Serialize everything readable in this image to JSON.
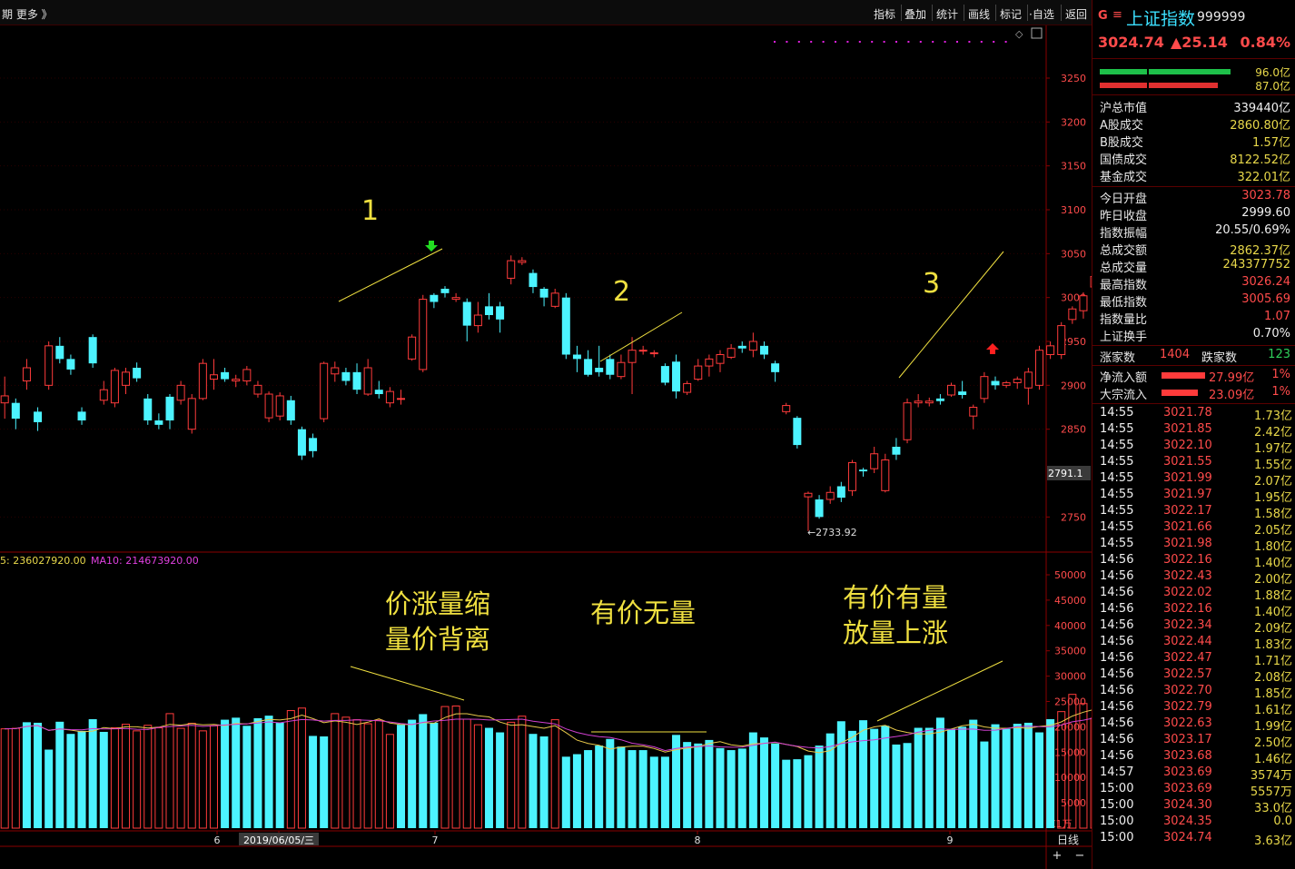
{
  "toolbar": {
    "left_text": "期  更多 》",
    "items": [
      "指标",
      "叠加",
      "统计",
      "画线",
      "标记",
      "·自选",
      "返回"
    ]
  },
  "header": {
    "g_icon": "G",
    "menu_icon": "≡",
    "name": "上证指数",
    "code": "999999",
    "price": "3024.74",
    "change": "▲25.14",
    "pct": "0.84%"
  },
  "flow_bars": {
    "green_value": "96.0亿",
    "red_value": "87.0亿"
  },
  "stats": [
    {
      "k": "沪总市值",
      "v": "339440亿",
      "c": "wht"
    },
    {
      "k": "A股成交",
      "v": "2860.80亿",
      "c": "yel"
    },
    {
      "k": "B股成交",
      "v": "1.57亿",
      "c": "yel"
    },
    {
      "k": "国债成交",
      "v": "8122.52亿",
      "c": "yel"
    },
    {
      "k": "基金成交",
      "v": "322.01亿",
      "c": "yel"
    },
    {
      "k": "今日开盘",
      "v": "3023.78",
      "c": "red"
    },
    {
      "k": "昨日收盘",
      "v": "2999.60",
      "c": "wht"
    },
    {
      "k": "指数振幅",
      "v": "20.55/0.69%",
      "c": "wht"
    },
    {
      "k": "总成交额",
      "v": "2862.37亿",
      "c": "yel"
    },
    {
      "k": "总成交量",
      "v": "243377752",
      "c": "yel"
    },
    {
      "k": "最高指数",
      "v": "3026.24",
      "c": "red"
    },
    {
      "k": "最低指数",
      "v": "3005.69",
      "c": "red"
    },
    {
      "k": "指数量比",
      "v": "1.07",
      "c": "red"
    },
    {
      "k": "上证换手",
      "v": "0.70%",
      "c": "wht"
    }
  ],
  "breadth": {
    "up_label": "涨家数",
    "up": "1404",
    "down_label": "跌家数",
    "down": "123"
  },
  "flows": [
    {
      "k": "净流入额",
      "v": "27.99亿",
      "p": "1%"
    },
    {
      "k": "大宗流入",
      "v": "23.09亿",
      "p": "1%"
    }
  ],
  "ticks": [
    [
      "14:55",
      "3021.78",
      "1.73亿"
    ],
    [
      "14:55",
      "3021.85",
      "2.42亿"
    ],
    [
      "14:55",
      "3022.10",
      "1.97亿"
    ],
    [
      "14:55",
      "3021.55",
      "1.55亿"
    ],
    [
      "14:55",
      "3021.99",
      "2.07亿"
    ],
    [
      "14:55",
      "3021.97",
      "1.95亿"
    ],
    [
      "14:55",
      "3022.17",
      "1.58亿"
    ],
    [
      "14:55",
      "3021.66",
      "2.05亿"
    ],
    [
      "14:55",
      "3021.98",
      "1.80亿"
    ],
    [
      "14:56",
      "3022.16",
      "1.40亿"
    ],
    [
      "14:56",
      "3022.43",
      "2.00亿"
    ],
    [
      "14:56",
      "3022.02",
      "1.88亿"
    ],
    [
      "14:56",
      "3022.16",
      "1.40亿"
    ],
    [
      "14:56",
      "3022.34",
      "2.09亿"
    ],
    [
      "14:56",
      "3022.44",
      "1.83亿"
    ],
    [
      "14:56",
      "3022.47",
      "1.71亿"
    ],
    [
      "14:56",
      "3022.57",
      "2.08亿"
    ],
    [
      "14:56",
      "3022.70",
      "1.85亿"
    ],
    [
      "14:56",
      "3022.79",
      "1.61亿"
    ],
    [
      "14:56",
      "3022.63",
      "1.99亿"
    ],
    [
      "14:56",
      "3023.17",
      "2.50亿"
    ],
    [
      "14:56",
      "3023.68",
      "1.46亿"
    ],
    [
      "14:57",
      "3023.69",
      "3574万"
    ],
    [
      "15:00",
      "3023.69",
      "5557万"
    ],
    [
      "15:00",
      "3024.30",
      "33.0亿"
    ],
    [
      "15:00",
      "3024.35",
      "0.0"
    ],
    [
      "15:00",
      "3024.74",
      "3.63亿"
    ]
  ],
  "chart_data": {
    "type": "candlestick",
    "price_axis": {
      "ticks": [
        3250,
        3200,
        3150,
        3100,
        3050,
        3000,
        2950,
        2900,
        2850,
        2750
      ],
      "ylim": [
        2725,
        3280
      ]
    },
    "current_price_tag": "2791.1",
    "low_label": "←2733.92",
    "volume_axis": {
      "ticks": [
        50000,
        45000,
        40000,
        35000,
        30000,
        25000,
        20000,
        15000,
        10000,
        5000
      ],
      "ylim": [
        0,
        52000
      ],
      "unit": "X1万"
    },
    "ma_label_ma5": "5: 236027920.00",
    "ma_label_ma10": "MA10: 214673920.00",
    "x_labels": [
      "6",
      "2019/06/05/三",
      "7",
      "8",
      "9"
    ],
    "period_label": "日线",
    "zoom_plus": "+",
    "zoom_minus": "−",
    "annotations": [
      "1",
      "2",
      "3",
      "价涨量缩",
      "量价背离",
      "有价无量",
      "有价有量",
      "放量上涨"
    ],
    "candles": [
      [
        2880,
        2888,
        2862,
        2910
      ],
      [
        2880,
        2862,
        2850,
        2885
      ],
      [
        2905,
        2920,
        2895,
        2930
      ],
      [
        2870,
        2858,
        2848,
        2875
      ],
      [
        2900,
        2945,
        2895,
        2950
      ],
      [
        2945,
        2930,
        2925,
        2955
      ],
      [
        2930,
        2918,
        2912,
        2935
      ],
      [
        2870,
        2860,
        2855,
        2875
      ],
      [
        2955,
        2925,
        2920,
        2958
      ],
      [
        2883,
        2895,
        2878,
        2905
      ],
      [
        2880,
        2917,
        2875,
        2920
      ],
      [
        2900,
        2915,
        2890,
        2920
      ],
      [
        2920,
        2908,
        2904,
        2926
      ],
      [
        2885,
        2860,
        2855,
        2890
      ],
      [
        2860,
        2855,
        2850,
        2868
      ],
      [
        2887,
        2860,
        2850,
        2890
      ],
      [
        2883,
        2900,
        2878,
        2905
      ],
      [
        2850,
        2885,
        2845,
        2890
      ],
      [
        2885,
        2925,
        2883,
        2930
      ],
      [
        2907,
        2912,
        2895,
        2930
      ],
      [
        2915,
        2907,
        2904,
        2920
      ],
      [
        2905,
        2907,
        2898,
        2912
      ],
      [
        2905,
        2918,
        2900,
        2922
      ],
      [
        2890,
        2900,
        2886,
        2905
      ],
      [
        2863,
        2890,
        2858,
        2893
      ],
      [
        2865,
        2888,
        2860,
        2892
      ],
      [
        2883,
        2860,
        2855,
        2888
      ],
      [
        2850,
        2820,
        2815,
        2853
      ],
      [
        2840,
        2825,
        2818,
        2845
      ],
      [
        2862,
        2925,
        2858,
        2927
      ],
      [
        2913,
        2920,
        2904,
        2927
      ],
      [
        2915,
        2905,
        2900,
        2920
      ],
      [
        2915,
        2895,
        2890,
        2925
      ],
      [
        2890,
        2920,
        2888,
        2930
      ],
      [
        2895,
        2890,
        2885,
        2905
      ],
      [
        2880,
        2893,
        2875,
        2898
      ],
      [
        2885,
        2885,
        2878,
        2895
      ],
      [
        2930,
        2955,
        2928,
        2958
      ],
      [
        2918,
        2998,
        2915,
        3003
      ],
      [
        3003,
        2995,
        2988,
        3005
      ],
      [
        3010,
        3005,
        3000,
        3013
      ],
      [
        2998,
        3000,
        2995,
        3005
      ],
      [
        2995,
        2968,
        2950,
        2999
      ],
      [
        2968,
        2980,
        2960,
        2995
      ],
      [
        2990,
        2980,
        2975,
        3005
      ],
      [
        2990,
        2975,
        2960,
        2995
      ],
      [
        3022,
        3042,
        3015,
        3048
      ],
      [
        3040,
        3042,
        3037,
        3046
      ],
      [
        3028,
        3012,
        3005,
        3032
      ],
      [
        3010,
        3000,
        2990,
        3012
      ],
      [
        2990,
        3005,
        2988,
        3010
      ],
      [
        3000,
        2935,
        2930,
        3005
      ],
      [
        2935,
        2930,
        2915,
        2945
      ],
      [
        2930,
        2912,
        2910,
        2940
      ],
      [
        2920,
        2915,
        2910,
        2945
      ],
      [
        2930,
        2912,
        2907,
        2935
      ],
      [
        2910,
        2926,
        2907,
        2935
      ],
      [
        2926,
        2940,
        2890,
        2955
      ],
      [
        2940,
        2940,
        2935,
        2945
      ],
      [
        2937,
        2937,
        2932,
        2940
      ],
      [
        2922,
        2903,
        2900,
        2925
      ],
      [
        2927,
        2893,
        2885,
        2935
      ],
      [
        2892,
        2902,
        2889,
        2905
      ],
      [
        2907,
        2922,
        2905,
        2930
      ],
      [
        2922,
        2930,
        2910,
        2935
      ],
      [
        2925,
        2935,
        2915,
        2940
      ],
      [
        2932,
        2942,
        2930,
        2947
      ],
      [
        2945,
        2942,
        2937,
        2950
      ],
      [
        2940,
        2950,
        2932,
        2960
      ],
      [
        2945,
        2935,
        2930,
        2950
      ],
      [
        2925,
        2915,
        2904,
        2928
      ],
      [
        2870,
        2877,
        2867,
        2880
      ],
      [
        2863,
        2832,
        2828,
        2865
      ],
      [
        2773,
        2777,
        2734,
        2779
      ],
      [
        2770,
        2750,
        2748,
        2775
      ],
      [
        2770,
        2778,
        2765,
        2785
      ],
      [
        2785,
        2772,
        2767,
        2790
      ],
      [
        2780,
        2812,
        2774,
        2815
      ],
      [
        2804,
        2802,
        2796,
        2806
      ],
      [
        2805,
        2822,
        2800,
        2830
      ],
      [
        2780,
        2815,
        2778,
        2822
      ],
      [
        2830,
        2821,
        2815,
        2840
      ],
      [
        2838,
        2880,
        2834,
        2885
      ],
      [
        2880,
        2882,
        2875,
        2890
      ],
      [
        2880,
        2882,
        2876,
        2886
      ],
      [
        2885,
        2882,
        2878,
        2890
      ],
      [
        2889,
        2900,
        2887,
        2903
      ],
      [
        2893,
        2889,
        2885,
        2905
      ],
      [
        2865,
        2875,
        2850,
        2878
      ],
      [
        2885,
        2910,
        2880,
        2915
      ],
      [
        2905,
        2900,
        2895,
        2910
      ],
      [
        2900,
        2903,
        2897,
        2905
      ],
      [
        2903,
        2907,
        2896,
        2910
      ],
      [
        2897,
        2915,
        2878,
        2920
      ],
      [
        2900,
        2940,
        2895,
        2945
      ],
      [
        2935,
        2945,
        2930,
        2950
      ],
      [
        2935,
        2968,
        2930,
        2972
      ],
      [
        2975,
        2987,
        2970,
        2990
      ],
      [
        2985,
        3002,
        2976,
        3006
      ],
      [
        3012,
        3024,
        3010,
        3027
      ],
      [
        3005,
        3025,
        3000,
        3030
      ],
      [
        3024,
        3023,
        3006,
        3026
      ]
    ],
    "volumes": [
      [
        19600,
        0
      ],
      [
        19700,
        0
      ],
      [
        20900,
        1
      ],
      [
        20800,
        1
      ],
      [
        15500,
        1
      ],
      [
        21000,
        1
      ],
      [
        18600,
        1
      ],
      [
        19200,
        1
      ],
      [
        21500,
        1
      ],
      [
        19000,
        1
      ],
      [
        19800,
        0
      ],
      [
        20500,
        0
      ],
      [
        19200,
        0
      ],
      [
        20300,
        0
      ],
      [
        19800,
        0
      ],
      [
        22600,
        0
      ],
      [
        19700,
        0
      ],
      [
        20700,
        0
      ],
      [
        19200,
        0
      ],
      [
        20200,
        0
      ],
      [
        21400,
        1
      ],
      [
        21800,
        1
      ],
      [
        20200,
        1
      ],
      [
        21700,
        1
      ],
      [
        22200,
        1
      ],
      [
        20800,
        1
      ],
      [
        23200,
        0
      ],
      [
        23700,
        0
      ],
      [
        18200,
        1
      ],
      [
        18100,
        1
      ],
      [
        22600,
        0
      ],
      [
        21900,
        0
      ],
      [
        21400,
        0
      ],
      [
        20600,
        0
      ],
      [
        21300,
        0
      ],
      [
        18500,
        0
      ],
      [
        20400,
        1
      ],
      [
        21400,
        1
      ],
      [
        22500,
        1
      ],
      [
        20800,
        1
      ],
      [
        24000,
        0
      ],
      [
        24100,
        0
      ],
      [
        21500,
        0
      ],
      [
        20400,
        0
      ],
      [
        19800,
        1
      ],
      [
        18900,
        1
      ],
      [
        20900,
        0
      ],
      [
        22100,
        0
      ],
      [
        18600,
        1
      ],
      [
        18100,
        1
      ],
      [
        21400,
        0
      ],
      [
        14100,
        1
      ],
      [
        14600,
        1
      ],
      [
        15400,
        1
      ],
      [
        16300,
        1
      ],
      [
        17600,
        1
      ],
      [
        16100,
        1
      ],
      [
        15400,
        1
      ],
      [
        15400,
        1
      ],
      [
        14100,
        1
      ],
      [
        14100,
        1
      ],
      [
        18400,
        1
      ],
      [
        17000,
        1
      ],
      [
        16700,
        1
      ],
      [
        17400,
        1
      ],
      [
        15800,
        1
      ],
      [
        15400,
        1
      ],
      [
        15700,
        1
      ],
      [
        18900,
        1
      ],
      [
        17900,
        1
      ],
      [
        16700,
        1
      ],
      [
        13500,
        1
      ],
      [
        13600,
        1
      ],
      [
        14400,
        1
      ],
      [
        16300,
        1
      ],
      [
        18700,
        1
      ],
      [
        21100,
        1
      ],
      [
        19200,
        1
      ],
      [
        21300,
        1
      ],
      [
        19600,
        1
      ],
      [
        20200,
        1
      ],
      [
        16500,
        1
      ],
      [
        16800,
        1
      ],
      [
        19800,
        1
      ],
      [
        19800,
        1
      ],
      [
        21800,
        1
      ],
      [
        19600,
        1
      ],
      [
        20000,
        1
      ],
      [
        21400,
        1
      ],
      [
        17100,
        1
      ],
      [
        20500,
        1
      ],
      [
        19600,
        1
      ],
      [
        20600,
        1
      ],
      [
        20800,
        1
      ],
      [
        18900,
        1
      ],
      [
        21500,
        1
      ],
      [
        23000,
        0
      ],
      [
        26400,
        0
      ],
      [
        24600,
        0
      ],
      [
        21700,
        0
      ],
      [
        21900,
        0
      ],
      [
        24600,
        0
      ]
    ]
  }
}
